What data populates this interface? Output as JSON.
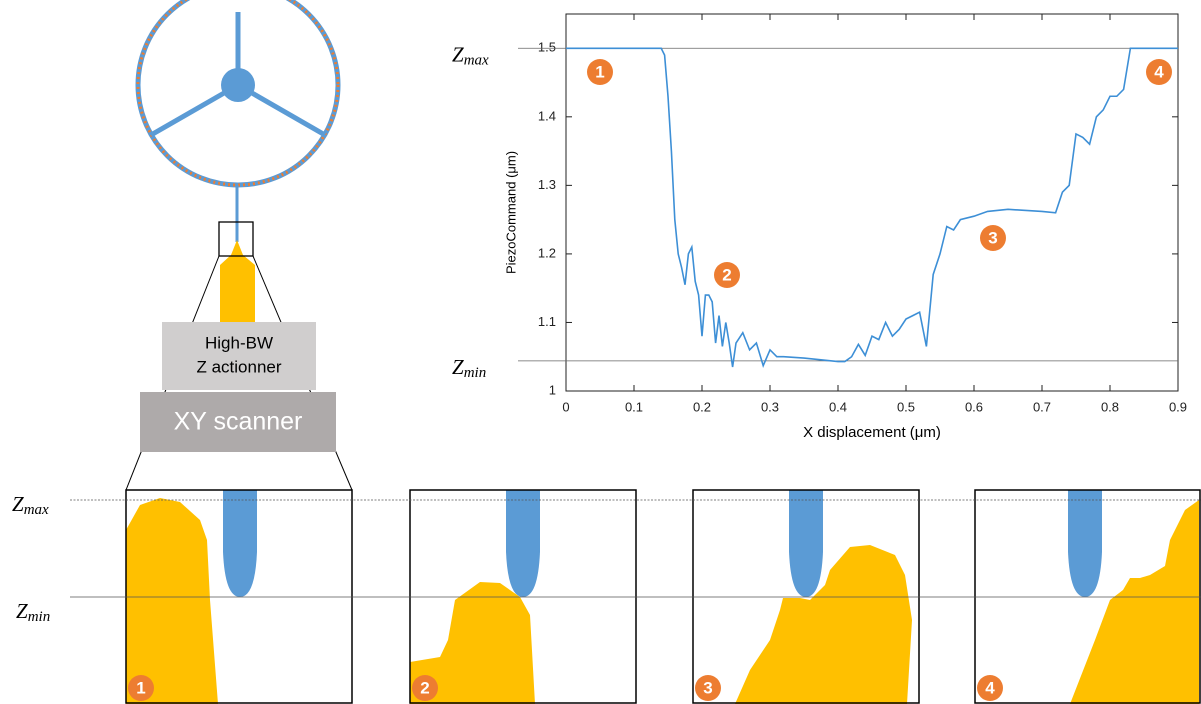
{
  "chart_data": {
    "type": "line",
    "xlabel": "X displacement (μm)",
    "ylabel": "PiezoCommand (μm)",
    "xlim": [
      0,
      0.9
    ],
    "ylim": [
      1,
      1.55
    ],
    "xticks": [
      0,
      0.1,
      0.2,
      0.3,
      0.4,
      0.5,
      0.6,
      0.7,
      0.8,
      0.9
    ],
    "yticks": [
      1,
      1.1,
      1.2,
      1.3,
      1.4,
      1.5
    ],
    "x": [
      0,
      0.14,
      0.145,
      0.15,
      0.155,
      0.16,
      0.165,
      0.17,
      0.175,
      0.18,
      0.185,
      0.19,
      0.195,
      0.2,
      0.205,
      0.21,
      0.215,
      0.22,
      0.225,
      0.23,
      0.235,
      0.24,
      0.245,
      0.25,
      0.26,
      0.27,
      0.28,
      0.29,
      0.3,
      0.31,
      0.32,
      0.35,
      0.4,
      0.41,
      0.42,
      0.43,
      0.44,
      0.45,
      0.46,
      0.47,
      0.48,
      0.49,
      0.5,
      0.51,
      0.52,
      0.53,
      0.54,
      0.55,
      0.56,
      0.57,
      0.58,
      0.6,
      0.62,
      0.65,
      0.7,
      0.72,
      0.73,
      0.74,
      0.75,
      0.76,
      0.77,
      0.78,
      0.79,
      0.8,
      0.81,
      0.82,
      0.825,
      0.83,
      0.9
    ],
    "series": [
      {
        "color": "#3d8fd6",
        "values": [
          1.5,
          1.5,
          1.49,
          1.43,
          1.35,
          1.25,
          1.2,
          1.18,
          1.155,
          1.2,
          1.21,
          1.16,
          1.14,
          1.08,
          1.14,
          1.14,
          1.13,
          1.07,
          1.11,
          1.065,
          1.1,
          1.07,
          1.035,
          1.07,
          1.085,
          1.06,
          1.07,
          1.037,
          1.06,
          1.05,
          1.05,
          1.048,
          1.043,
          1.043,
          1.05,
          1.068,
          1.052,
          1.08,
          1.075,
          1.1,
          1.08,
          1.09,
          1.105,
          1.11,
          1.115,
          1.065,
          1.17,
          1.2,
          1.24,
          1.235,
          1.25,
          1.255,
          1.262,
          1.265,
          1.262,
          1.26,
          1.29,
          1.3,
          1.375,
          1.37,
          1.36,
          1.4,
          1.41,
          1.43,
          1.43,
          1.44,
          1.47,
          1.5,
          1.5
        ]
      }
    ],
    "reference_lines": [
      {
        "value": 1.5,
        "label": {
          "symbol": "Z",
          "subscript": "max"
        }
      },
      {
        "value": 1.044,
        "label": {
          "symbol": "Z",
          "subscript": "min"
        }
      }
    ],
    "annotations": [
      "1",
      "2",
      "3",
      "4"
    ]
  },
  "diagram": {
    "actuator": [
      "High-BW",
      "Z actionner"
    ],
    "scanner": "XY scanner",
    "levels": [
      {
        "symbol": "Z",
        "subscript": "max"
      },
      {
        "symbol": "Z",
        "subscript": "min"
      }
    ],
    "panels": [
      "1",
      "2",
      "3",
      "4"
    ]
  }
}
